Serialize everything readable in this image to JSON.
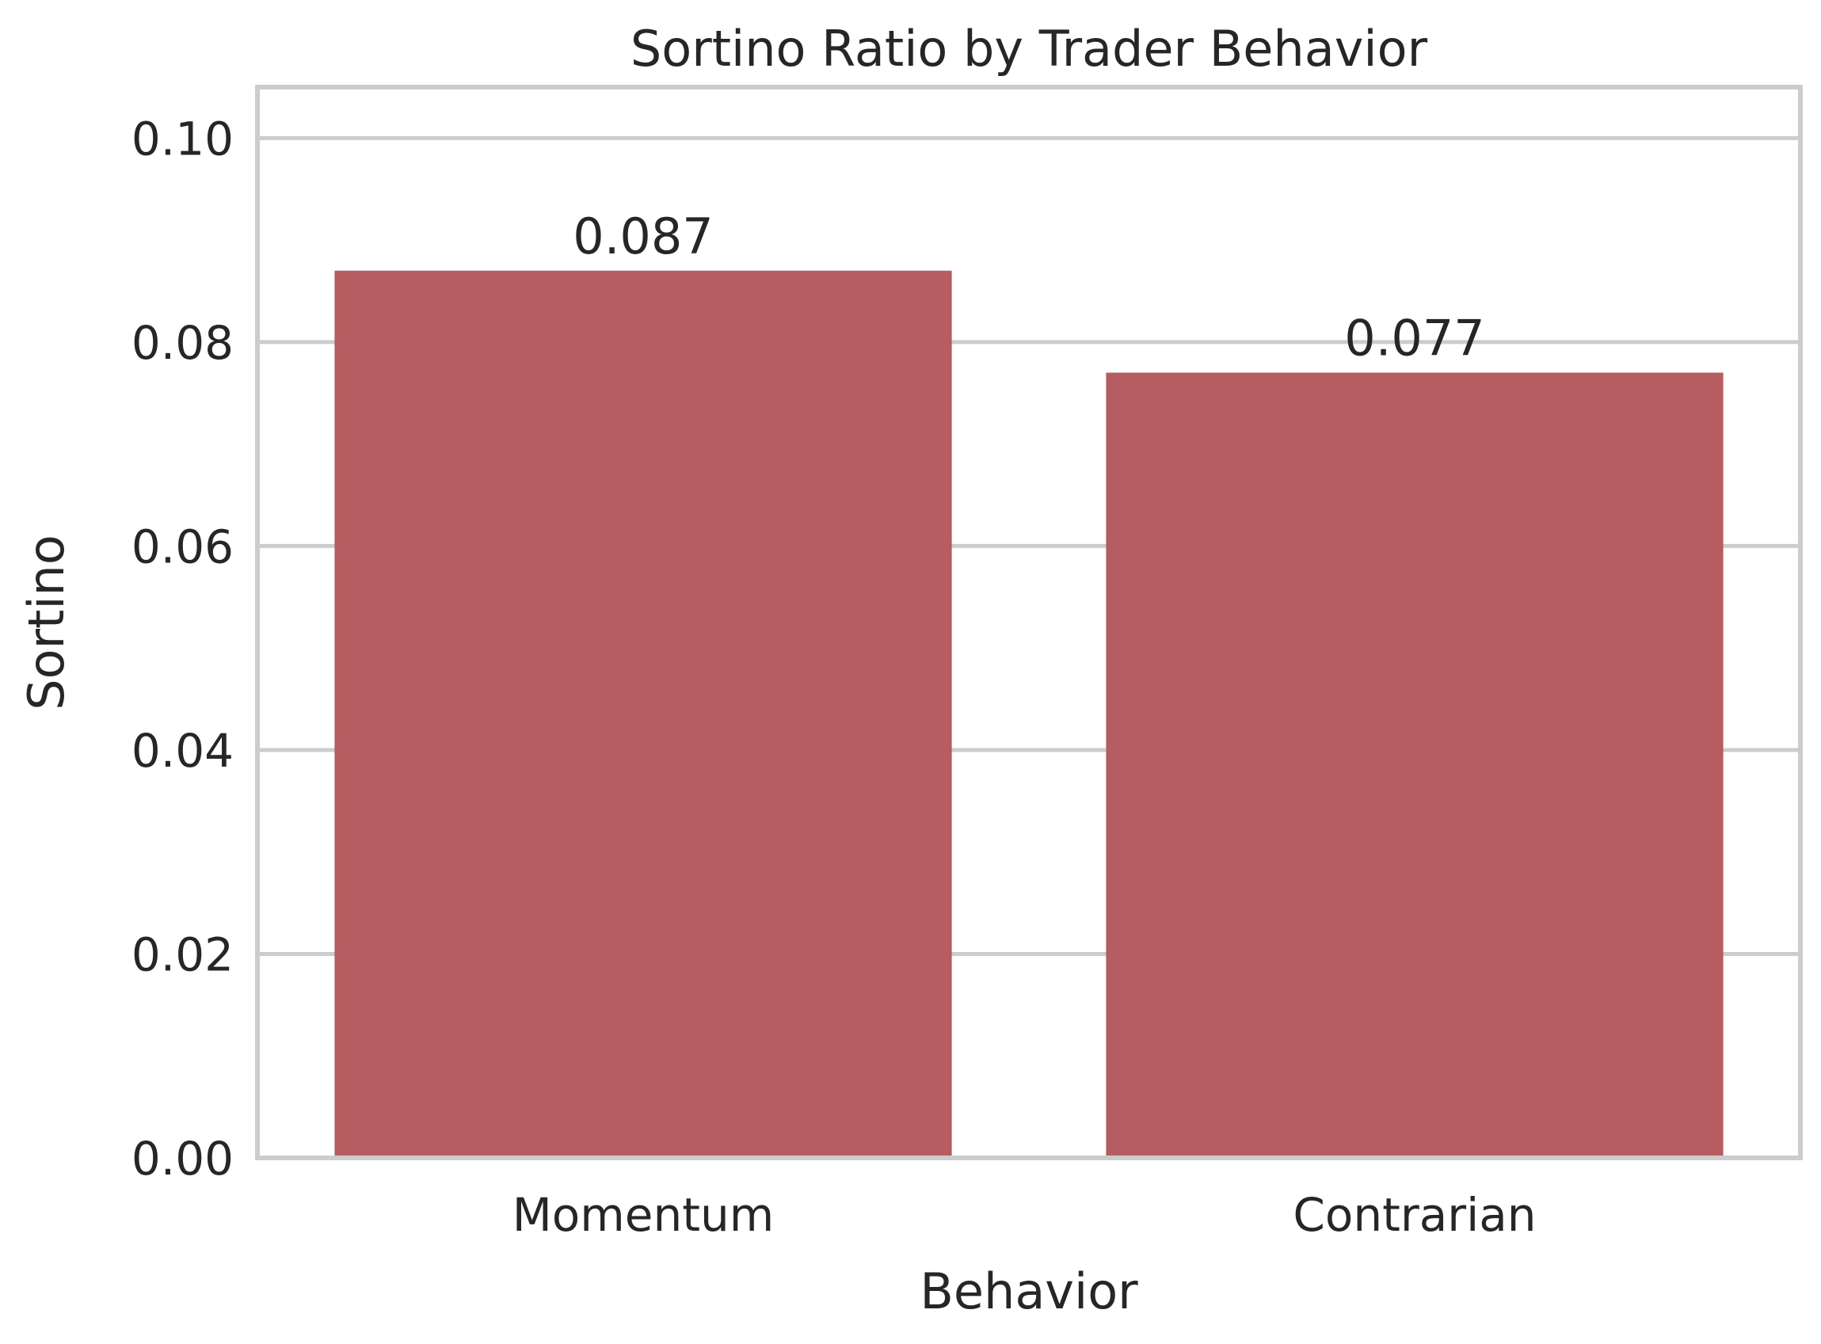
{
  "chart_data": {
    "type": "bar",
    "title": "Sortino Ratio by Trader Behavior",
    "xlabel": "Behavior",
    "ylabel": "Sortino",
    "categories": [
      "Momentum",
      "Contrarian"
    ],
    "values": [
      0.087,
      0.077
    ],
    "value_labels": [
      "0.087",
      "0.077"
    ],
    "ylim": [
      0,
      0.105
    ],
    "yticks": [
      0.0,
      0.02,
      0.04,
      0.06,
      0.08,
      0.1
    ],
    "ytick_labels": [
      "0.00",
      "0.02",
      "0.04",
      "0.06",
      "0.08",
      "0.10"
    ],
    "grid": true,
    "bar_color": "#b55d60",
    "grid_color": "#cccccc",
    "text_color": "#262626"
  }
}
